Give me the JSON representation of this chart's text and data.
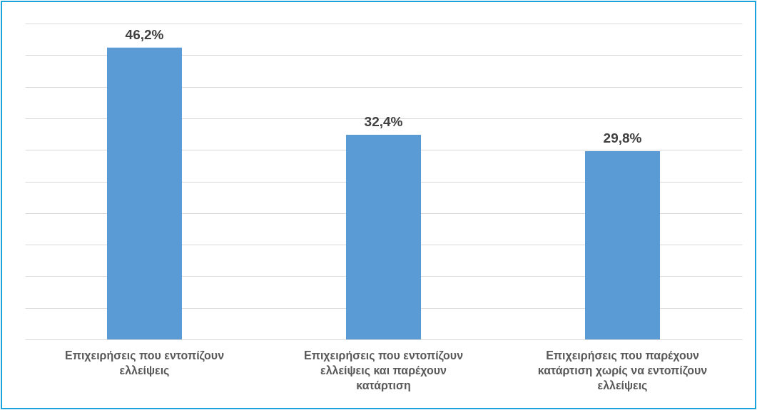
{
  "chart_data": {
    "type": "bar",
    "categories": [
      "Επιχειρήσεις που εντοπίζουν ελλείψεις",
      "Επιχειρήσεις που εντοπίζουν ελλείψεις και παρέχουν κατάρτιση",
      "Επιχειρήσεις που παρέχουν κατάρτιση χωρίς να εντοπίζουν ελλείψεις"
    ],
    "values": [
      46.2,
      32.4,
      29.8
    ],
    "value_labels": [
      "46,2%",
      "32,4%",
      "29,8%"
    ],
    "color": "#5b9bd5",
    "ylim": [
      0,
      50
    ],
    "yticks": [
      0,
      5,
      10,
      15,
      20,
      25,
      30,
      35,
      40,
      45,
      50
    ],
    "grid": "y",
    "tick_labels": "x"
  }
}
